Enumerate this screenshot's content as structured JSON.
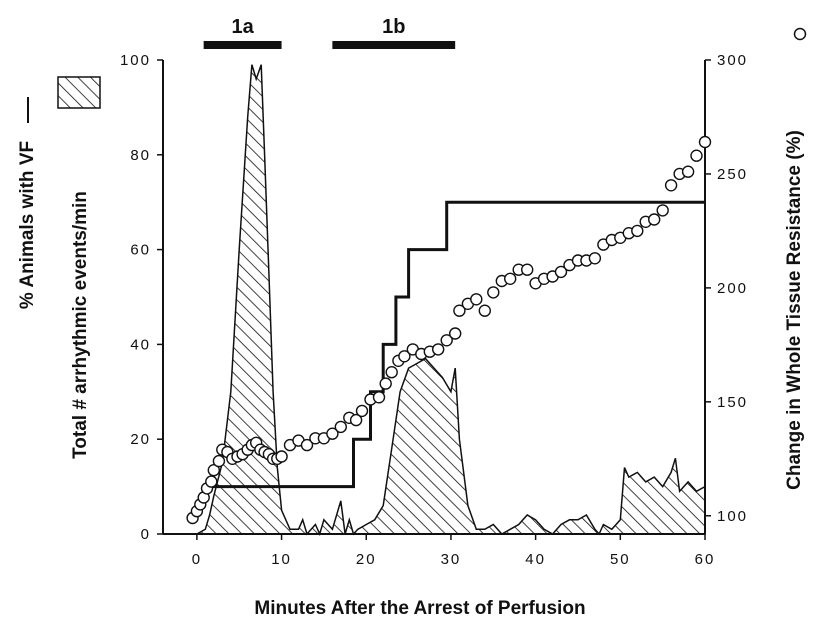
{
  "chart_data": {
    "type": "line",
    "xlabel": "Minutes After the Arrest of Perfusion",
    "ylabel_left_line1": "% Animals with VF",
    "ylabel_left_line2": "Total # arrhythmic events/min",
    "ylabel_right": "Change in Whole Tissue Resistance (%)",
    "xlim": [
      -4,
      60
    ],
    "ylim_left": [
      0,
      100
    ],
    "ylim_right": [
      92,
      300
    ],
    "x_ticks": [
      0,
      10,
      20,
      30,
      40,
      50,
      60
    ],
    "y_left_ticks": [
      0,
      20,
      40,
      60,
      80,
      100
    ],
    "y_right_ticks": [
      100,
      150,
      200,
      250,
      300
    ],
    "x_tick_labels": [
      "0",
      "10",
      "20",
      "30",
      "40",
      "50",
      "60"
    ],
    "y_left_tick_labels": [
      "0",
      "20",
      "40",
      "60",
      "80",
      "100"
    ],
    "y_right_tick_labels": [
      "100",
      "150",
      "200",
      "250",
      "300"
    ],
    "periods": [
      {
        "label": "1a",
        "x_start": 0.8,
        "x_end": 10
      },
      {
        "label": "1b",
        "x_start": 16,
        "x_end": 30.5
      }
    ],
    "series": [
      {
        "kind": "step-line",
        "axis": "left",
        "x": [
          1,
          18.5,
          18.5,
          20.5,
          20.5,
          22,
          22,
          23.5,
          23.5,
          25,
          25,
          27.5,
          27.5,
          29.5,
          29.5,
          60
        ],
        "y": [
          10,
          10,
          20,
          20,
          30,
          30,
          40,
          40,
          50,
          50,
          60,
          60,
          60,
          60,
          70,
          70
        ]
      },
      {
        "kind": "hatched-area",
        "axis": "left",
        "x": [
          0,
          1,
          1.5,
          2,
          3,
          4,
          5,
          6,
          6.5,
          7,
          7.6,
          8,
          8.5,
          9,
          9.5,
          10,
          11,
          12,
          12.5,
          13,
          14,
          14.5,
          15,
          16,
          17,
          17.5,
          18,
          18.5,
          19,
          20,
          21,
          22,
          23,
          24,
          25,
          26,
          27,
          28,
          29,
          30,
          30.5,
          31,
          32,
          33,
          34,
          35,
          36,
          37,
          38,
          39,
          40,
          41,
          42,
          43,
          44,
          45,
          46,
          47,
          47.5,
          48,
          49,
          50,
          50.5,
          51,
          52,
          53,
          54,
          55,
          56,
          56.5,
          57,
          58,
          59,
          60
        ],
        "y": [
          0,
          1,
          4,
          8,
          15,
          30,
          60,
          88,
          99,
          96,
          99,
          80,
          55,
          30,
          14,
          5,
          1,
          1,
          3,
          0,
          2,
          0,
          3,
          1,
          7,
          0,
          3,
          0,
          1,
          2,
          3,
          6,
          18,
          30,
          35,
          36,
          37,
          35,
          33,
          30,
          35,
          20,
          6,
          1,
          1,
          2,
          0,
          1,
          2,
          4,
          3,
          1,
          0,
          2,
          3,
          3,
          4,
          1,
          0,
          2,
          1,
          3,
          14,
          12,
          13,
          11,
          12,
          10,
          13,
          16,
          9,
          11,
          9,
          10
        ]
      },
      {
        "kind": "scatter",
        "axis": "right",
        "marker": "open-circle",
        "x": [
          -0.5,
          0,
          0.4,
          0.8,
          1.2,
          1.7,
          2,
          2.6,
          3,
          3.6,
          4.2,
          4.8,
          5.4,
          6,
          6.5,
          7,
          7.5,
          8,
          8.5,
          9,
          9.5,
          10,
          11,
          12,
          13,
          14,
          15,
          16,
          17,
          18,
          18.8,
          19.5,
          20.5,
          21.5,
          22.3,
          23,
          23.8,
          24.5,
          25.5,
          26.5,
          27.5,
          28.5,
          29.5,
          30.5,
          31,
          32,
          33,
          34,
          35,
          36,
          37,
          38,
          39,
          40,
          41,
          42,
          43,
          44,
          45,
          46,
          47,
          48,
          49,
          50,
          51,
          52,
          53,
          54,
          55,
          56,
          57,
          58,
          59,
          60
        ],
        "y": [
          99,
          102,
          105,
          108,
          112,
          115,
          120,
          124,
          129,
          128,
          125,
          126,
          127,
          129,
          131,
          132,
          129,
          128,
          127,
          125,
          125,
          126,
          131,
          133,
          131,
          134,
          134,
          136,
          139,
          143,
          142,
          146,
          151,
          152,
          158,
          163,
          168,
          170,
          173,
          171,
          172,
          173,
          177,
          180,
          190,
          193,
          195,
          190,
          198,
          203,
          204,
          208,
          208,
          202,
          204,
          205,
          207,
          210,
          212,
          212,
          213,
          219,
          221,
          222,
          224,
          225,
          229,
          230,
          234,
          245,
          250,
          251,
          258,
          264
        ]
      }
    ]
  }
}
